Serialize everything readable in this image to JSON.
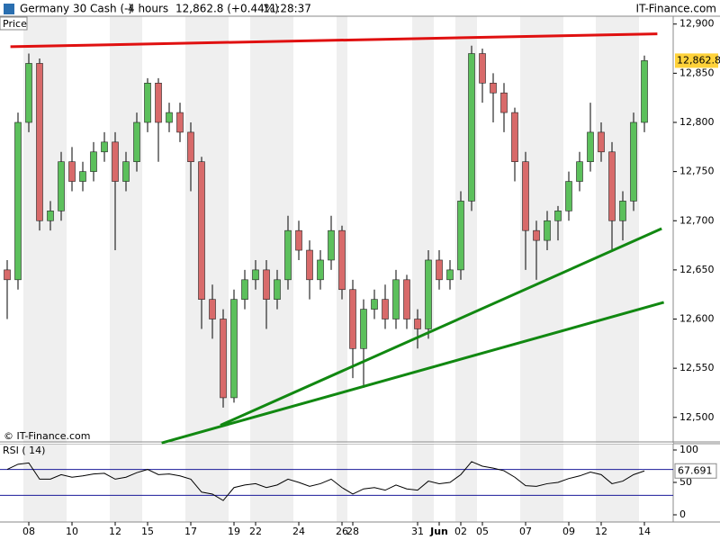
{
  "header": {
    "instrument": "Germany 30 Cash (-)",
    "interval": "4 hours",
    "quote": "12,862.8 (+0.44%)",
    "time": "11:28:37",
    "brand": "IT-Finance.com"
  },
  "chart_data": [
    {
      "type": "candlestick",
      "title": "Price",
      "credit": "© IT-Finance.com",
      "categories": [
        null,
        null,
        "08",
        null,
        null,
        null,
        "10",
        null,
        null,
        null,
        "12",
        null,
        null,
        "15",
        null,
        null,
        null,
        "17",
        null,
        null,
        null,
        "19",
        null,
        "22",
        null,
        null,
        null,
        "24",
        null,
        null,
        null,
        "26",
        "28",
        null,
        null,
        null,
        null,
        null,
        "31",
        null,
        "Jun",
        null,
        "02",
        null,
        "05",
        null,
        null,
        null,
        "07",
        null,
        null,
        null,
        "09",
        null,
        null,
        "12",
        null,
        null,
        null,
        "14"
      ],
      "open": [
        12650,
        12640,
        12800,
        12860,
        12700,
        12710,
        12760,
        12740,
        12750,
        12770,
        12780,
        12740,
        12760,
        12800,
        12840,
        12800,
        12810,
        12790,
        12760,
        12620,
        12600,
        12520,
        12620,
        12640,
        12650,
        12620,
        12640,
        12690,
        12670,
        12640,
        12660,
        12690,
        12630,
        12570,
        12610,
        12620,
        12600,
        12640,
        12600,
        12590,
        12660,
        12640,
        12650,
        12720,
        12870,
        12840,
        12830,
        12810,
        12760,
        12690,
        12680,
        12700,
        12710,
        12740,
        12760,
        12790,
        12770,
        12700,
        12720,
        12800
      ],
      "high": [
        12660,
        12810,
        12870,
        12865,
        12720,
        12770,
        12775,
        12760,
        12780,
        12790,
        12790,
        12770,
        12810,
        12845,
        12845,
        12820,
        12820,
        12800,
        12765,
        12635,
        12610,
        12630,
        12650,
        12660,
        12660,
        12650,
        12705,
        12700,
        12680,
        12670,
        12705,
        12695,
        12640,
        12620,
        12630,
        12635,
        12650,
        12645,
        12610,
        12670,
        12670,
        12660,
        12730,
        12878,
        12875,
        12850,
        12840,
        12815,
        12770,
        12700,
        12710,
        12715,
        12750,
        12770,
        12820,
        12800,
        12780,
        12730,
        12810,
        12868
      ],
      "low": [
        12600,
        12630,
        12790,
        12690,
        12690,
        12700,
        12730,
        12730,
        12740,
        12760,
        12670,
        12730,
        12750,
        12790,
        12760,
        12790,
        12780,
        12730,
        12590,
        12580,
        12510,
        12515,
        12610,
        12630,
        12590,
        12610,
        12630,
        12660,
        12620,
        12630,
        12650,
        12620,
        12540,
        12530,
        12600,
        12590,
        12590,
        12590,
        12570,
        12580,
        12630,
        12630,
        12640,
        12710,
        12820,
        12800,
        12790,
        12740,
        12650,
        12640,
        12670,
        12680,
        12700,
        12730,
        12750,
        12760,
        12670,
        12680,
        12710,
        12790
      ],
      "close": [
        12640,
        12800,
        12860,
        12700,
        12710,
        12760,
        12740,
        12750,
        12770,
        12780,
        12740,
        12760,
        12800,
        12840,
        12800,
        12810,
        12790,
        12760,
        12620,
        12600,
        12520,
        12620,
        12640,
        12650,
        12620,
        12640,
        12690,
        12670,
        12640,
        12660,
        12690,
        12630,
        12570,
        12610,
        12620,
        12600,
        12640,
        12600,
        12590,
        12660,
        12640,
        12650,
        12720,
        12870,
        12840,
        12830,
        12810,
        12760,
        12690,
        12680,
        12700,
        12710,
        12740,
        12760,
        12790,
        12770,
        12700,
        12720,
        12800,
        12862.8
      ],
      "last_value": {
        "value": 12862.8,
        "label": "12,862.8"
      },
      "up_color": "#5cc05c",
      "down_color": "#d86a6a",
      "ylim": [
        12476,
        12908
      ],
      "yticks": [
        {
          "value": 12500,
          "label": "12,500"
        },
        {
          "value": 12550,
          "label": "12,550"
        },
        {
          "value": 12600,
          "label": "12,600"
        },
        {
          "value": 12650,
          "label": "12,650"
        },
        {
          "value": 12700,
          "label": "12,700"
        },
        {
          "value": 12750,
          "label": "12,750"
        },
        {
          "value": 12800,
          "label": "12,800"
        },
        {
          "value": 12850,
          "label": "12,850"
        },
        {
          "value": 12900,
          "label": "12,900"
        }
      ],
      "trendlines": [
        {
          "color": "#e01010",
          "from": [
            0.3,
            12877
          ],
          "to": [
            60.2,
            12890
          ]
        },
        {
          "color": "#118811",
          "from": [
            19.75,
            12492
          ],
          "to": [
            60.6,
            12692
          ]
        },
        {
          "color": "#118811",
          "from": [
            14.3,
            12474
          ],
          "to": [
            60.8,
            12617
          ]
        }
      ]
    },
    {
      "type": "line",
      "title": "RSI ( 14)",
      "color": "#000000",
      "values": [
        70,
        78,
        80,
        55,
        55,
        62,
        58,
        60,
        63,
        64,
        55,
        58,
        65,
        70,
        62,
        63,
        60,
        55,
        35,
        32,
        22,
        42,
        46,
        48,
        42,
        46,
        55,
        50,
        44,
        48,
        55,
        42,
        32,
        40,
        42,
        38,
        46,
        40,
        38,
        52,
        48,
        50,
        62,
        82,
        75,
        72,
        68,
        58,
        45,
        44,
        48,
        50,
        56,
        60,
        66,
        62,
        48,
        52,
        62,
        67.691
      ],
      "ylim": [
        -11.1,
        109.7
      ],
      "yticks": [
        100,
        50,
        0
      ],
      "levels": [
        70,
        30
      ],
      "level_color": "#1a1a9a"
    }
  ]
}
